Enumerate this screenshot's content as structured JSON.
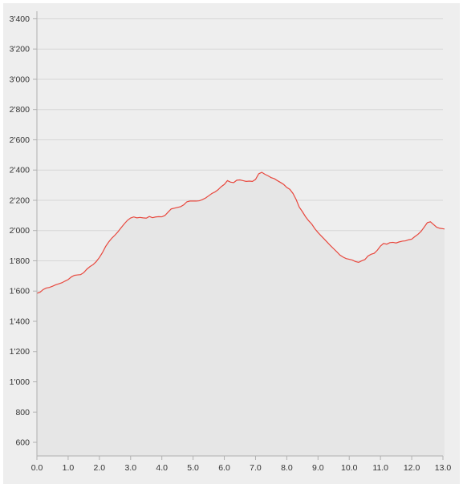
{
  "chart_data": {
    "type": "area",
    "title": "",
    "xlabel": "",
    "ylabel": "",
    "xlim": [
      0,
      13
    ],
    "ylim": [
      510,
      3450
    ],
    "x_ticks": [
      0,
      1,
      2,
      3,
      4,
      5,
      6,
      7,
      8,
      9,
      10,
      11,
      12,
      13
    ],
    "x_tick_labels": [
      "0.0",
      "1.0",
      "2.0",
      "3.0",
      "4.0",
      "5.0",
      "6.0",
      "7.0",
      "8.0",
      "9.0",
      "10.0",
      "11.0",
      "12.0",
      "13.0"
    ],
    "y_ticks": [
      600,
      800,
      1000,
      1200,
      1400,
      1600,
      1800,
      2000,
      2200,
      2400,
      2600,
      2800,
      3000,
      3200,
      3400
    ],
    "y_tick_labels": [
      "600",
      "800",
      "1'000",
      "1'200",
      "1'400",
      "1'600",
      "1'800",
      "2'000",
      "2'200",
      "2'400",
      "2'600",
      "2'800",
      "3'000",
      "3'200",
      "3'400"
    ],
    "grid": true,
    "colors": {
      "line": "#e8483e",
      "fill": "#e6e6e6",
      "plot_background": "#eeeeee",
      "grid": "#d6d6d6",
      "axis": "#b0b0b0"
    },
    "series": [
      {
        "x": [
          0.0,
          0.1,
          0.2,
          0.3,
          0.4,
          0.5,
          0.6,
          0.7,
          0.8,
          0.9,
          1.0,
          1.1,
          1.2,
          1.3,
          1.4,
          1.5,
          1.6,
          1.7,
          1.8,
          1.9,
          2.0,
          2.1,
          2.2,
          2.3,
          2.4,
          2.5,
          2.6,
          2.7,
          2.8,
          2.9,
          3.0,
          3.1,
          3.2,
          3.3,
          3.4,
          3.5,
          3.6,
          3.7,
          3.8,
          3.9,
          4.0,
          4.1,
          4.2,
          4.3,
          4.4,
          4.5,
          4.6,
          4.7,
          4.8,
          4.9,
          5.0,
          5.1,
          5.2,
          5.3,
          5.4,
          5.5,
          5.6,
          5.7,
          5.8,
          5.9,
          6.0,
          6.1,
          6.2,
          6.3,
          6.4,
          6.5,
          6.6,
          6.7,
          6.8,
          6.9,
          7.0,
          7.1,
          7.2,
          7.3,
          7.4,
          7.5,
          7.6,
          7.7,
          7.8,
          7.9,
          8.0,
          8.1,
          8.2,
          8.3,
          8.4,
          8.5,
          8.6,
          8.7,
          8.8,
          8.9,
          9.0,
          9.1,
          9.2,
          9.3,
          9.4,
          9.5,
          9.6,
          9.7,
          9.8,
          9.9,
          10.0,
          10.1,
          10.2,
          10.3,
          10.4,
          10.5,
          10.6,
          10.7,
          10.8,
          10.9,
          11.0,
          11.1,
          11.2,
          11.3,
          11.4,
          11.5,
          11.6,
          11.7,
          11.8,
          11.9,
          12.0,
          12.1,
          12.2,
          12.3,
          12.4,
          12.5,
          12.6,
          12.7,
          12.8,
          12.9,
          13.0,
          13.05
        ],
        "y": [
          1585,
          1592,
          1610,
          1620,
          1624,
          1632,
          1641,
          1648,
          1655,
          1666,
          1676,
          1693,
          1704,
          1707,
          1709,
          1722,
          1745,
          1762,
          1775,
          1795,
          1822,
          1855,
          1895,
          1925,
          1950,
          1970,
          1993,
          2020,
          2045,
          2068,
          2083,
          2090,
          2084,
          2087,
          2084,
          2082,
          2093,
          2085,
          2090,
          2092,
          2091,
          2100,
          2122,
          2143,
          2148,
          2153,
          2158,
          2170,
          2190,
          2195,
          2195,
          2195,
          2197,
          2205,
          2215,
          2230,
          2245,
          2255,
          2270,
          2290,
          2305,
          2330,
          2320,
          2317,
          2333,
          2335,
          2330,
          2325,
          2327,
          2325,
          2338,
          2375,
          2385,
          2372,
          2362,
          2350,
          2343,
          2330,
          2318,
          2305,
          2285,
          2272,
          2245,
          2205,
          2155,
          2125,
          2092,
          2065,
          2043,
          2012,
          1987,
          1965,
          1944,
          1922,
          1900,
          1880,
          1860,
          1838,
          1825,
          1815,
          1810,
          1805,
          1795,
          1790,
          1800,
          1808,
          1832,
          1843,
          1850,
          1870,
          1898,
          1915,
          1910,
          1920,
          1922,
          1918,
          1925,
          1930,
          1932,
          1939,
          1943,
          1960,
          1975,
          1995,
          2023,
          2052,
          2058,
          2040,
          2022,
          2015,
          2012,
          2010
        ]
      }
    ]
  }
}
